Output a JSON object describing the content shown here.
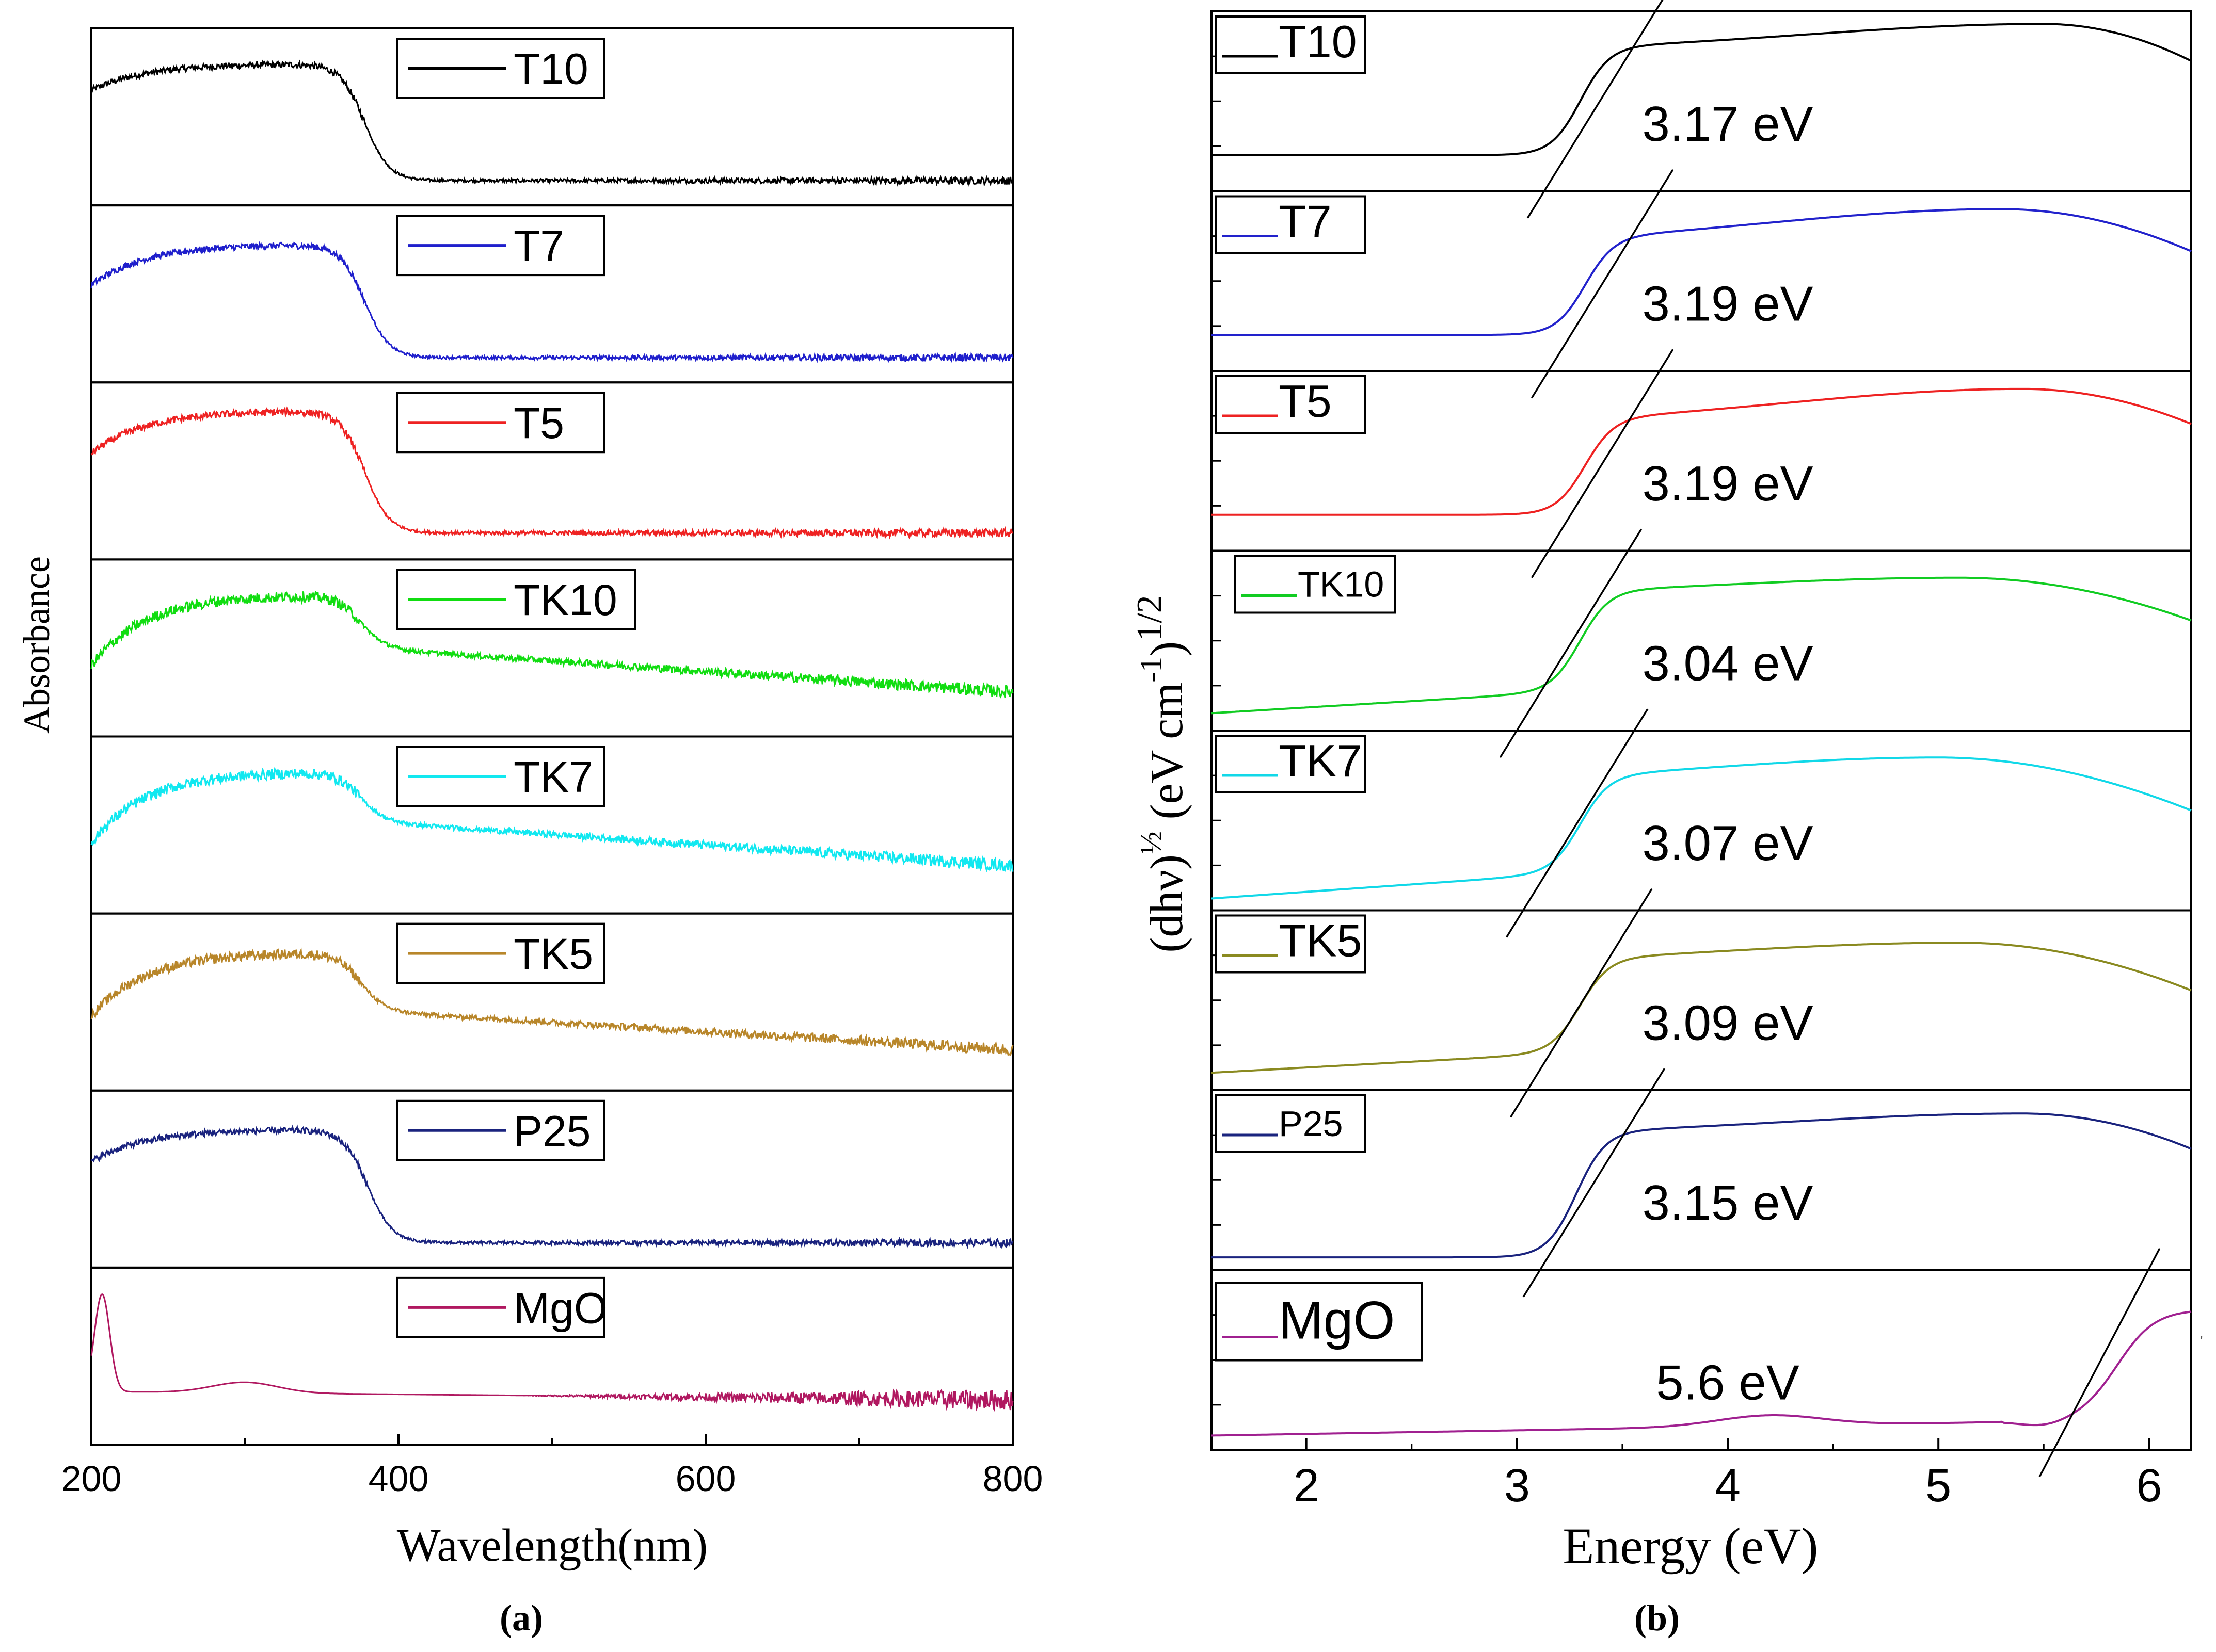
{
  "chart_data": [
    {
      "id": "a",
      "type": "line",
      "caption": "(a)",
      "xlabel": "Wavelength(nm)",
      "ylabel": "Absorbance",
      "xlim": [
        200,
        800
      ],
      "xticks": [
        "200",
        "400",
        "600",
        "800"
      ],
      "panel_ylim": [
        0,
        1
      ],
      "series": [
        {
          "name": "T10",
          "color": "#000000",
          "edge_nm": 378,
          "plateau": 0.8,
          "low": 0.14,
          "start": 0.65,
          "tail_slope": 0.0,
          "noise": 0.018
        },
        {
          "name": "T7",
          "color": "#1f1fcc",
          "edge_nm": 378,
          "plateau": 0.78,
          "low": 0.14,
          "start": 0.55,
          "tail_slope": 0.0,
          "noise": 0.018
        },
        {
          "name": "T5",
          "color": "#ee2222",
          "edge_nm": 378,
          "plateau": 0.84,
          "low": 0.15,
          "start": 0.6,
          "tail_slope": 0.0,
          "noise": 0.02
        },
        {
          "name": "TK10",
          "color": "#11dd11",
          "edge_nm": 375,
          "plateau": 0.8,
          "low": 0.5,
          "start": 0.4,
          "tail_slope": 0.25,
          "noise": 0.03
        },
        {
          "name": "TK7",
          "color": "#11e8f0",
          "edge_nm": 375,
          "plateau": 0.8,
          "low": 0.52,
          "start": 0.4,
          "tail_slope": 0.25,
          "noise": 0.03
        },
        {
          "name": "TK5",
          "color": "#b8862a",
          "edge_nm": 375,
          "plateau": 0.78,
          "low": 0.45,
          "start": 0.42,
          "tail_slope": 0.22,
          "noise": 0.028
        },
        {
          "name": "P25",
          "color": "#1a237e",
          "edge_nm": 380,
          "plateau": 0.78,
          "low": 0.14,
          "start": 0.6,
          "tail_slope": 0.0,
          "noise": 0.018
        },
        {
          "name": "MgO",
          "color": "#b01860",
          "edge_nm": 220,
          "plateau": 0.88,
          "low": 0.3,
          "start": 0.85,
          "tail_slope": 0.0,
          "noise": 0.03
        }
      ]
    },
    {
      "id": "b",
      "type": "line",
      "caption": "(b)",
      "xlabel": "Energy (eV)",
      "ylabel": "(dhν)½ (eV cm⁻¹)¹ᐟ²",
      "ylabel_prefix": "(dhν)",
      "ylabel_half": "½",
      "ylabel_mid": " (eV cm",
      "ylabel_minus_one": "-1",
      "ylabel_close": ")",
      "ylabel_exponent": "1/2",
      "xlim": [
        1.55,
        6.2
      ],
      "xticks": [
        2,
        3,
        4,
        5,
        6
      ],
      "xtick_labels": [
        "2",
        "3",
        "4",
        "5",
        "6"
      ],
      "panel_ylim": [
        0,
        1
      ],
      "series": [
        {
          "name": "T10",
          "color": "#000000",
          "band_gap_label": "3.17 eV",
          "band_gap": 3.17,
          "edge": 3.3,
          "baseline": 0.2,
          "plateau": 0.78,
          "peak_e": 5.5,
          "peak_y": 0.93,
          "end_y": 0.75,
          "slope": 0.0
        },
        {
          "name": "T7",
          "color": "#2222cc",
          "band_gap_label": "3.19 eV",
          "band_gap": 3.19,
          "edge": 3.32,
          "baseline": 0.2,
          "plateau": 0.7,
          "peak_e": 5.3,
          "peak_y": 0.9,
          "end_y": 0.72,
          "slope": 0.0
        },
        {
          "name": "T5",
          "color": "#ee2222",
          "band_gap_label": "3.19 eV",
          "band_gap": 3.19,
          "edge": 3.32,
          "baseline": 0.2,
          "plateau": 0.7,
          "peak_e": 5.4,
          "peak_y": 0.9,
          "end_y": 0.75,
          "slope": 0.0
        },
        {
          "name": "TK10",
          "color": "#11cc22",
          "band_gap_label": "3.04 eV",
          "band_gap": 3.04,
          "edge": 3.3,
          "baseline": 0.1,
          "plateau": 0.75,
          "peak_e": 5.1,
          "peak_y": 0.85,
          "end_y": 0.65,
          "slope": 0.12
        },
        {
          "name": "TK7",
          "color": "#11d8e8",
          "band_gap_label": "3.07 eV",
          "band_gap": 3.07,
          "edge": 3.3,
          "baseline": 0.07,
          "plateau": 0.7,
          "peak_e": 5.0,
          "peak_y": 0.85,
          "end_y": 0.62,
          "slope": 0.14
        },
        {
          "name": "TK5",
          "color": "#8a8a20",
          "band_gap_label": "3.09 eV",
          "band_gap": 3.09,
          "edge": 3.3,
          "baseline": 0.1,
          "plateau": 0.7,
          "peak_e": 5.1,
          "peak_y": 0.82,
          "end_y": 0.6,
          "slope": 0.11
        },
        {
          "name": "P25",
          "color": "#1a237e",
          "band_gap_label": "3.15 eV",
          "band_gap": 3.15,
          "edge": 3.28,
          "baseline": 0.07,
          "plateau": 0.75,
          "peak_e": 5.4,
          "peak_y": 0.87,
          "end_y": 0.7,
          "slope": 0.0
        },
        {
          "name": "MgO",
          "color": "#a02090",
          "band_gap_label": "5.6 eV",
          "band_gap": 5.6,
          "edge": 5.85,
          "baseline": 0.08,
          "plateau": 0.78,
          "peak_e": 6.15,
          "peak_y": 0.78,
          "end_y": 0.78,
          "slope": 0.0
        }
      ]
    }
  ],
  "stray_mark": "'"
}
